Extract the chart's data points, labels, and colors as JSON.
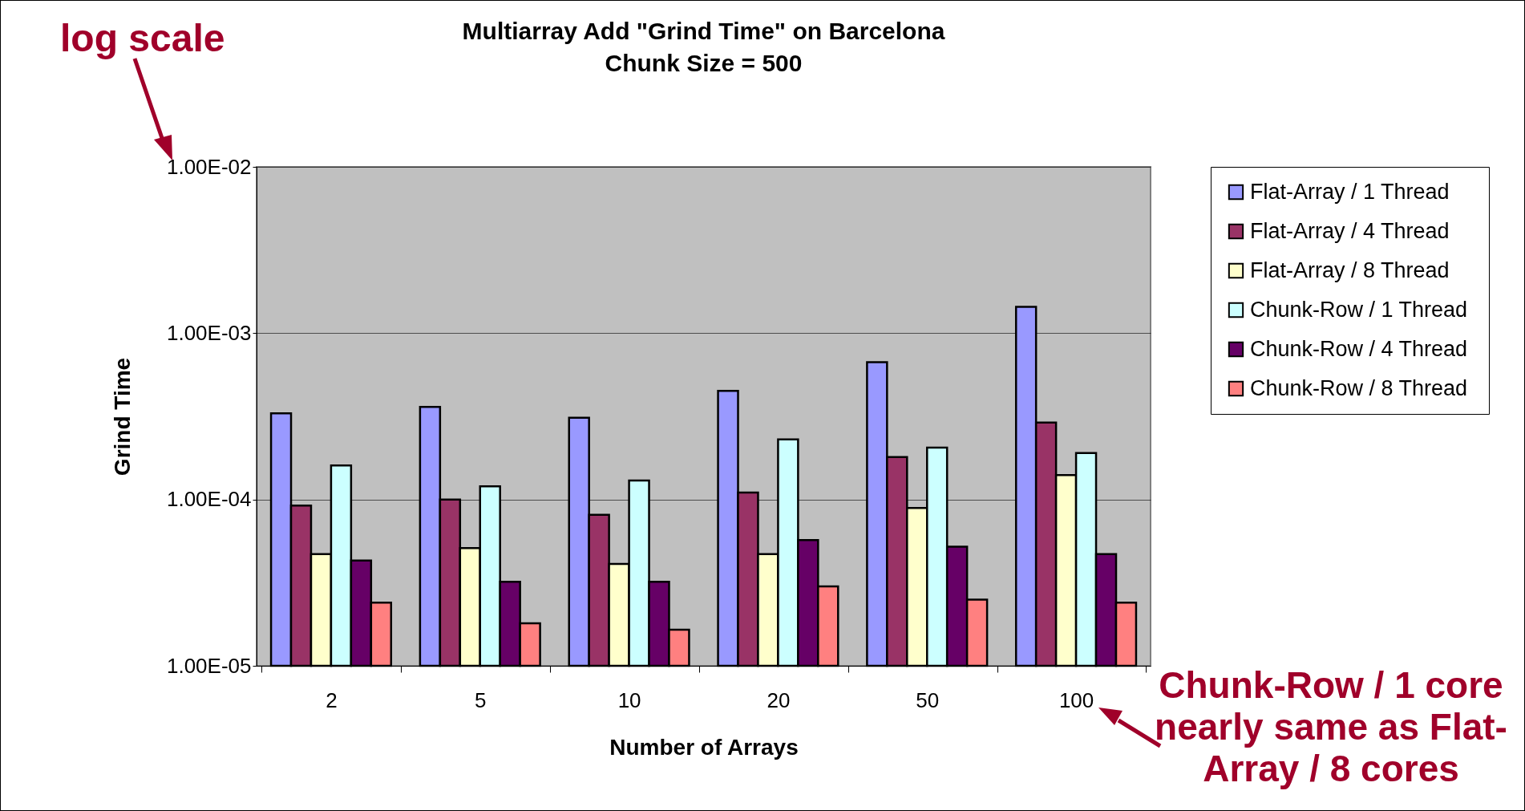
{
  "chart_data": {
    "type": "bar",
    "title": "Multiarray Add \"Grind Time\" on Barcelona",
    "subtitle": "Chunk Size = 500",
    "xlabel": "Number of Arrays",
    "ylabel": "Grind Time",
    "categories": [
      "2",
      "5",
      "10",
      "20",
      "50",
      "100"
    ],
    "series": [
      {
        "name": "Flat-Array / 1 Thread",
        "color": "#9999ff",
        "values": [
          0.00033,
          0.00036,
          0.00031,
          0.00045,
          0.00067,
          0.00144
        ]
      },
      {
        "name": "Flat-Array / 4 Thread",
        "color": "#993366",
        "values": [
          9.2e-05,
          0.0001,
          8.1e-05,
          0.00011,
          0.00018,
          0.00029
        ]
      },
      {
        "name": "Flat-Array / 8 Thread",
        "color": "#ffffcc",
        "values": [
          4.7e-05,
          5.1e-05,
          4.1e-05,
          4.7e-05,
          8.9e-05,
          0.00014
        ]
      },
      {
        "name": "Chunk-Row  / 1 Thread",
        "color": "#ccffff",
        "values": [
          0.00016,
          0.00012,
          0.00013,
          0.00023,
          0.000205,
          0.00019
        ]
      },
      {
        "name": "Chunk-Row  / 4 Thread",
        "color": "#660066",
        "values": [
          4.3e-05,
          3.2e-05,
          3.2e-05,
          5.7e-05,
          5.2e-05,
          4.7e-05
        ]
      },
      {
        "name": "Chunk-Row  / 8 Thread",
        "color": "#ff8080",
        "values": [
          2.4e-05,
          1.8e-05,
          1.65e-05,
          3e-05,
          2.5e-05,
          2.4e-05
        ]
      }
    ],
    "log": true,
    "ylim": [
      1e-05,
      0.01
    ],
    "yticks": [
      {
        "value": 1e-05,
        "label": "1.00E-05"
      },
      {
        "value": 0.0001,
        "label": "1.00E-04"
      },
      {
        "value": 0.001,
        "label": "1.00E-03"
      },
      {
        "value": 0.01,
        "label": "1.00E-02"
      }
    ],
    "grid": "y",
    "legend": "right",
    "annotations": [
      "log scale",
      "Chunk-Row / 1 core nearly same as Flat-Array / 8 cores"
    ]
  }
}
